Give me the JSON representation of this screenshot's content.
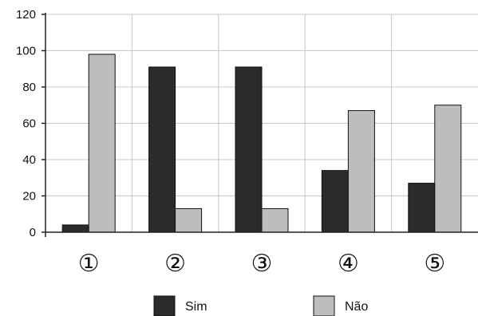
{
  "chart_data": {
    "type": "bar",
    "title": "",
    "xlabel": "",
    "ylabel": "",
    "categories": [
      "①",
      "②",
      "③",
      "④",
      "⑤"
    ],
    "series": [
      {
        "name": "Sim",
        "values": [
          4,
          91,
          91,
          34,
          27
        ],
        "color": "#2b2b2b"
      },
      {
        "name": "Não",
        "values": [
          98,
          13,
          13,
          67,
          70
        ],
        "color": "#bdbdbd"
      }
    ],
    "ylim": [
      0,
      120
    ],
    "yticks": [
      "0",
      "20",
      "40",
      "60",
      "80",
      "100",
      "120"
    ],
    "grid": true,
    "legend": "bottom"
  }
}
